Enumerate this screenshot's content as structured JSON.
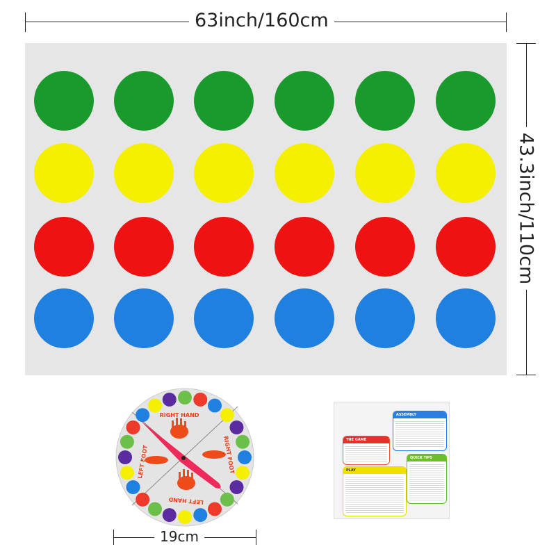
{
  "dimensions": {
    "width_label": "63inch/160cm",
    "height_label": "43.3inch/110cm",
    "spinner_label": "19cm"
  },
  "mat": {
    "background": "#e6e6e6",
    "rows": [
      {
        "color_name": "green",
        "color": "#1a9a2c",
        "count": 6
      },
      {
        "color_name": "yellow",
        "color": "#f5ef00",
        "count": 6
      },
      {
        "color_name": "red",
        "color": "#ee1212",
        "count": 6
      },
      {
        "color_name": "blue",
        "color": "#1f80e0",
        "count": 6
      }
    ]
  },
  "spinner": {
    "labels": [
      "RIGHT HAND",
      "RIGHT FOOT",
      "LEFT HAND",
      "LEFT FOOT"
    ],
    "pointer_color": "#ee2a5a"
  },
  "instruction_card": {
    "sections": [
      "THE GAME",
      "ASSEMBLY",
      "PLAY",
      "QUICK TIPS"
    ]
  }
}
